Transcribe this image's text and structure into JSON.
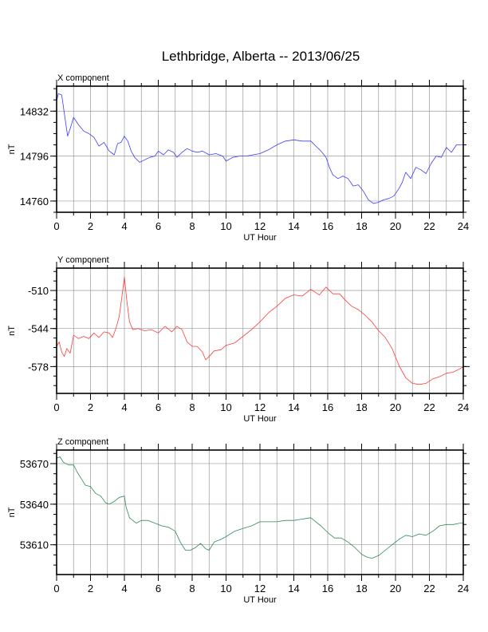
{
  "title": "Lethbridge, Alberta -- 2013/06/25",
  "chart_data": [
    {
      "type": "line",
      "panel_title": "X component",
      "xlabel": "UT Hour",
      "ylabel": "nT",
      "color": "#3b3bff",
      "xlim": [
        0,
        24
      ],
      "ylim": [
        14751,
        14852
      ],
      "xticks": [
        0,
        2,
        4,
        6,
        8,
        10,
        12,
        14,
        16,
        18,
        20,
        22,
        24
      ],
      "yticks": [
        14760,
        14796,
        14832
      ],
      "grid": true,
      "x": [
        0,
        0.1,
        0.3,
        0.5,
        0.65,
        0.8,
        1.0,
        1.3,
        1.6,
        1.9,
        2.2,
        2.5,
        2.8,
        3.1,
        3.4,
        3.6,
        3.8,
        4.0,
        4.2,
        4.4,
        4.6,
        4.9,
        5.2,
        5.5,
        5.8,
        6.0,
        6.3,
        6.6,
        6.9,
        7.1,
        7.4,
        7.7,
        8.0,
        8.3,
        8.6,
        9.0,
        9.4,
        9.8,
        10.0,
        10.4,
        10.8,
        11.2,
        11.6,
        12.0,
        12.5,
        13.0,
        13.5,
        14.0,
        14.5,
        15.0,
        15.3,
        15.6,
        15.9,
        16.1,
        16.3,
        16.6,
        16.9,
        17.2,
        17.5,
        17.8,
        18.1,
        18.4,
        18.7,
        19.0,
        19.3,
        19.6,
        19.9,
        20.2,
        20.4,
        20.6,
        20.9,
        21.2,
        21.5,
        21.8,
        22.1,
        22.4,
        22.7,
        23.0,
        23.3,
        23.6,
        24.0
      ],
      "values": [
        14840,
        14846,
        14845,
        14826,
        14812,
        14818,
        14827,
        14821,
        14816,
        14814,
        14811,
        14804,
        14807,
        14800,
        14797,
        14806,
        14807,
        14812,
        14808,
        14800,
        14795,
        14791,
        14793,
        14795,
        14796,
        14800,
        14797,
        14801,
        14799,
        14795,
        14799,
        14802,
        14800,
        14799,
        14800,
        14797,
        14798,
        14796,
        14792,
        14795,
        14796,
        14796,
        14797,
        14798,
        14801,
        14805,
        14808,
        14809,
        14808,
        14808,
        14804,
        14800,
        14795,
        14787,
        14781,
        14778,
        14780,
        14778,
        14772,
        14773,
        14768,
        14761,
        14758,
        14759,
        14761,
        14762,
        14764,
        14770,
        14775,
        14783,
        14778,
        14787,
        14785,
        14782,
        14790,
        14796,
        14795,
        14803,
        14799,
        14805,
        14805
      ]
    },
    {
      "type": "line",
      "panel_title": "Y component",
      "xlabel": "UT Hour",
      "ylabel": "nT",
      "color": "#ff3b3b",
      "xlim": [
        0,
        24
      ],
      "ylim": [
        -602,
        -490
      ],
      "xticks": [
        0,
        2,
        4,
        6,
        8,
        10,
        12,
        14,
        16,
        18,
        20,
        22,
        24
      ],
      "yticks": [
        -578,
        -544,
        -510
      ],
      "grid": true,
      "x": [
        0,
        0.15,
        0.3,
        0.45,
        0.6,
        0.8,
        1.0,
        1.3,
        1.6,
        1.9,
        2.2,
        2.5,
        2.8,
        3.1,
        3.3,
        3.5,
        3.7,
        3.85,
        4.0,
        4.15,
        4.3,
        4.5,
        4.8,
        5.2,
        5.6,
        6.0,
        6.4,
        6.8,
        7.1,
        7.4,
        7.7,
        8.0,
        8.3,
        8.6,
        8.8,
        9.0,
        9.3,
        9.7,
        10.0,
        10.5,
        11.0,
        11.5,
        12.0,
        12.5,
        13.0,
        13.5,
        14.0,
        14.5,
        15.0,
        15.5,
        15.9,
        16.3,
        16.7,
        17.0,
        17.4,
        17.8,
        18.2,
        18.6,
        19.0,
        19.4,
        19.8,
        20.2,
        20.6,
        21.0,
        21.4,
        21.8,
        22.2,
        22.6,
        23.0,
        23.4,
        23.8,
        24.0
      ],
      "values": [
        -560,
        -556,
        -565,
        -569,
        -562,
        -566,
        -550,
        -553,
        -551,
        -553,
        -548,
        -552,
        -547,
        -548,
        -552,
        -544,
        -533,
        -516,
        -498,
        -520,
        -538,
        -545,
        -544,
        -546,
        -545,
        -548,
        -542,
        -547,
        -542,
        -545,
        -556,
        -560,
        -560,
        -565,
        -572,
        -569,
        -564,
        -563,
        -559,
        -557,
        -551,
        -545,
        -538,
        -530,
        -524,
        -517,
        -514,
        -515,
        -509,
        -514,
        -507,
        -513,
        -513,
        -518,
        -524,
        -527,
        -532,
        -538,
        -546,
        -552,
        -562,
        -577,
        -588,
        -593,
        -594,
        -593,
        -589,
        -587,
        -584,
        -583,
        -580,
        -578
      ]
    },
    {
      "type": "line",
      "panel_title": "Z component",
      "xlabel": "UT Hour",
      "ylabel": "nT",
      "color": "#2e8b57",
      "xlim": [
        0,
        24
      ],
      "ylim": [
        53588,
        53680
      ],
      "xticks": [
        0,
        2,
        4,
        6,
        8,
        10,
        12,
        14,
        16,
        18,
        20,
        22,
        24
      ],
      "yticks": [
        53610,
        53640,
        53670
      ],
      "grid": true,
      "x": [
        0,
        0.2,
        0.4,
        0.7,
        1.0,
        1.2,
        1.5,
        1.7,
        2.0,
        2.3,
        2.6,
        2.9,
        3.1,
        3.4,
        3.7,
        4.0,
        4.1,
        4.3,
        4.5,
        4.7,
        5.0,
        5.4,
        5.8,
        6.2,
        6.6,
        7.0,
        7.3,
        7.6,
        7.9,
        8.2,
        8.5,
        8.8,
        9.0,
        9.3,
        9.7,
        10.0,
        10.5,
        11.0,
        11.5,
        12.0,
        12.5,
        13.0,
        13.5,
        14.0,
        14.5,
        15.0,
        15.3,
        15.6,
        16.0,
        16.4,
        16.8,
        17.2,
        17.6,
        18.0,
        18.3,
        18.6,
        19.0,
        19.4,
        19.8,
        20.2,
        20.6,
        21.0,
        21.4,
        21.8,
        22.2,
        22.6,
        23.0,
        23.4,
        23.8,
        24.0
      ],
      "values": [
        53674,
        53675,
        53671,
        53669,
        53669,
        53664,
        53658,
        53654,
        53653,
        53648,
        53646,
        53641,
        53640,
        53642,
        53645,
        53646,
        53638,
        53630,
        53628,
        53626,
        53628,
        53628,
        53626,
        53624,
        53623,
        53620,
        53612,
        53606,
        53606,
        53608,
        53611,
        53607,
        53606,
        53612,
        53614,
        53616,
        53620,
        53622,
        53624,
        53627,
        53627,
        53627,
        53628,
        53628,
        53629,
        53630,
        53627,
        53624,
        53619,
        53615,
        53615,
        53612,
        53608,
        53603,
        53601,
        53600,
        53602,
        53606,
        53610,
        53614,
        53617,
        53616,
        53618,
        53617,
        53620,
        53624,
        53625,
        53625,
        53626,
        53626
      ]
    }
  ]
}
